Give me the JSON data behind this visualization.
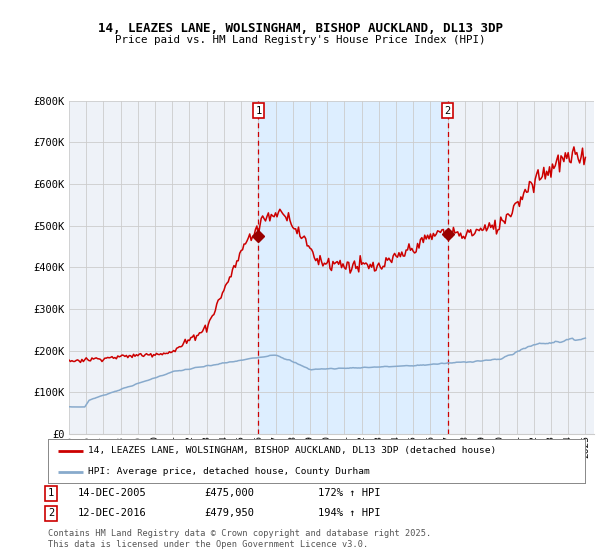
{
  "title": "14, LEAZES LANE, WOLSINGHAM, BISHOP AUCKLAND, DL13 3DP",
  "subtitle": "Price paid vs. HM Land Registry's House Price Index (HPI)",
  "ylim": [
    0,
    800000
  ],
  "yticks": [
    0,
    100000,
    200000,
    300000,
    400000,
    500000,
    600000,
    700000,
    800000
  ],
  "ytick_labels": [
    "£0",
    "£100K",
    "£200K",
    "£300K",
    "£400K",
    "£500K",
    "£600K",
    "£700K",
    "£800K"
  ],
  "sale1_date": "14-DEC-2005",
  "sale1_price": 475000,
  "sale1_hpi_pct": "172%",
  "sale2_date": "12-DEC-2016",
  "sale2_price": 479950,
  "sale2_hpi_pct": "194%",
  "sale1_x": 2006.0,
  "sale2_x": 2017.0,
  "red_line_color": "#cc0000",
  "blue_line_color": "#88aacc",
  "marker_color": "#990000",
  "vline_color": "#cc0000",
  "shading_color": "#ddeeff",
  "chart_bg_color": "#eef2f8",
  "grid_color": "#cccccc",
  "legend_label1": "14, LEAZES LANE, WOLSINGHAM, BISHOP AUCKLAND, DL13 3DP (detached house)",
  "legend_label2": "HPI: Average price, detached house, County Durham",
  "footer_text": "Contains HM Land Registry data © Crown copyright and database right 2025.\nThis data is licensed under the Open Government Licence v3.0.",
  "annotation1_label": "1",
  "annotation2_label": "2"
}
